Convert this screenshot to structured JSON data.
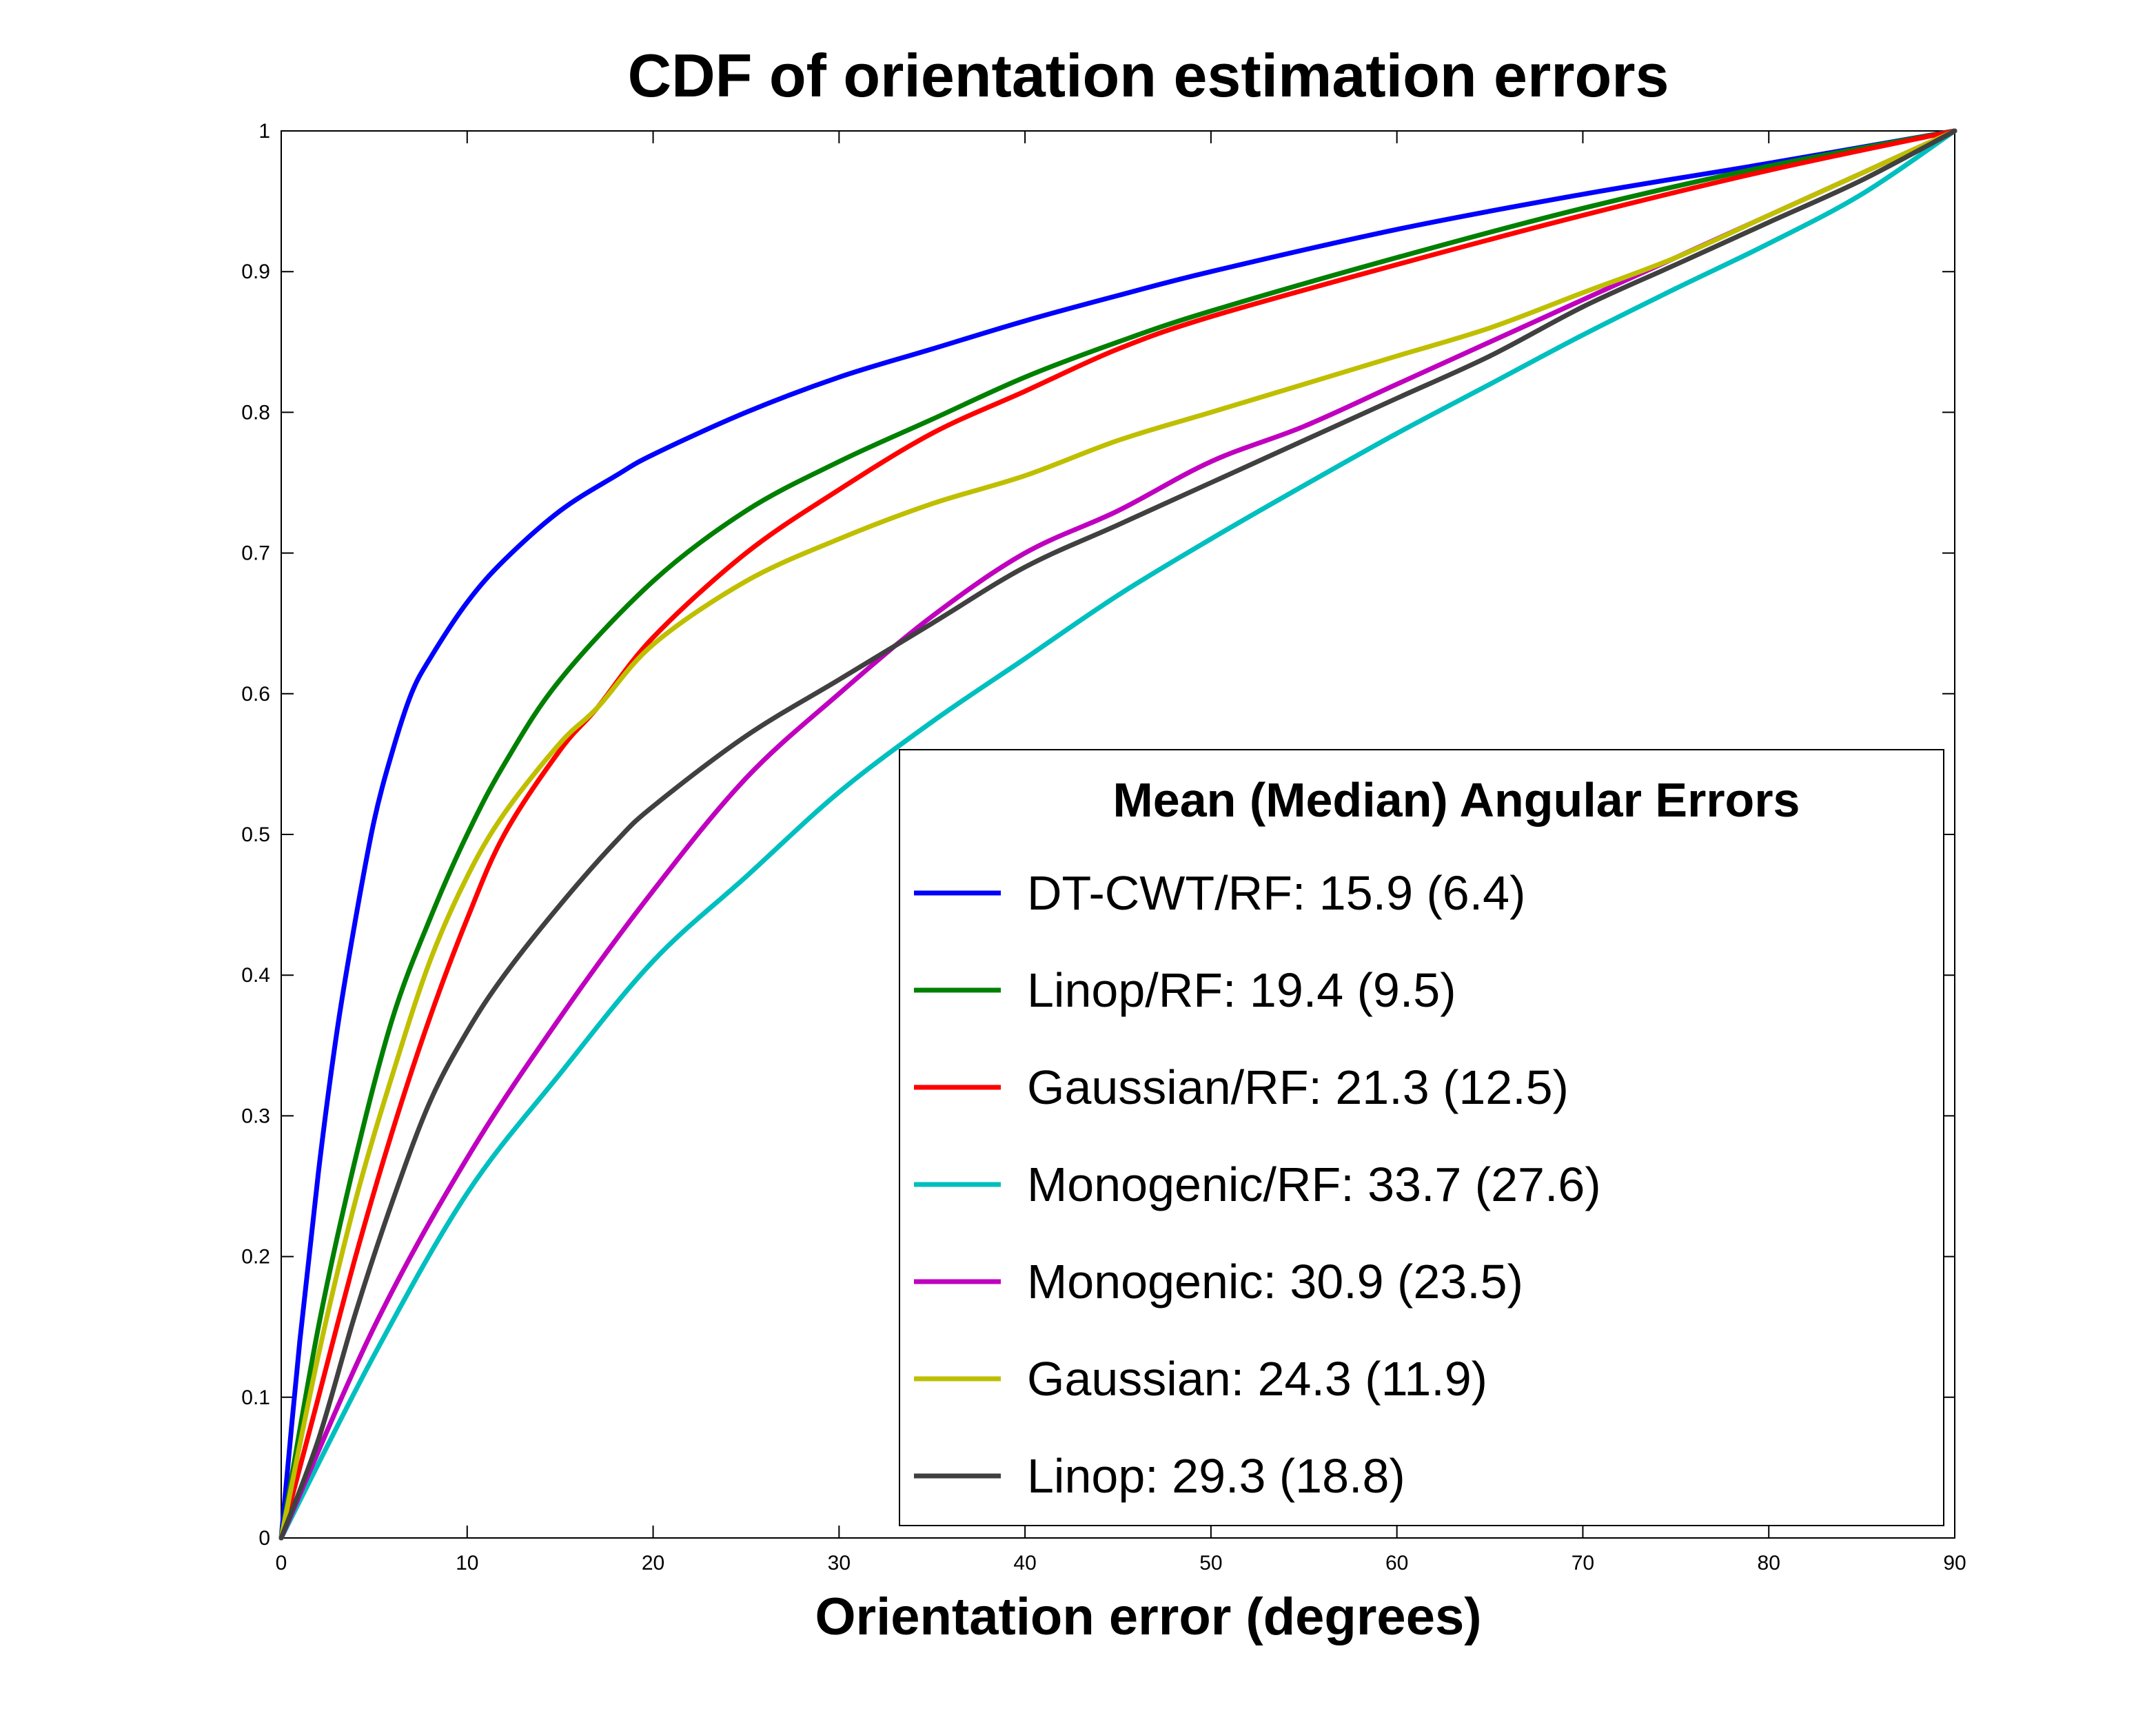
{
  "chart_data": {
    "type": "line",
    "title": "CDF of orientation estimation errors",
    "xlabel": "Orientation error (degrees)",
    "ylabel": "",
    "xlim": [
      0,
      90
    ],
    "ylim": [
      0,
      1
    ],
    "xticks": [
      "0",
      "10",
      "20",
      "30",
      "40",
      "50",
      "60",
      "70",
      "80",
      "90"
    ],
    "yticks": [
      "0",
      "0.1",
      "0.2",
      "0.3",
      "0.4",
      "0.5",
      "0.6",
      "0.7",
      "0.8",
      "0.9",
      "1"
    ],
    "grid": false,
    "legend": {
      "title": "Mean (Median) Angular Errors",
      "placement": "bottom-right"
    },
    "series": [
      {
        "name": "DT-CWT/RF: 15.9 (6.4)",
        "color": "#0000ff",
        "x": [
          0,
          1,
          2,
          3,
          4,
          5,
          6,
          7,
          8,
          10,
          12,
          15,
          18,
          20,
          25,
          30,
          35,
          40,
          45,
          50,
          60,
          70,
          80,
          90
        ],
        "y": [
          0,
          0.14,
          0.26,
          0.36,
          0.44,
          0.51,
          0.56,
          0.6,
          0.625,
          0.665,
          0.695,
          0.73,
          0.755,
          0.77,
          0.8,
          0.825,
          0.845,
          0.865,
          0.883,
          0.9,
          0.93,
          0.955,
          0.977,
          1.0
        ]
      },
      {
        "name": "Linop/RF: 19.4 (9.5)",
        "color": "#008000",
        "x": [
          0,
          2,
          4,
          6,
          8,
          10,
          12,
          15,
          20,
          25,
          30,
          35,
          40,
          45,
          50,
          60,
          70,
          80,
          90
        ],
        "y": [
          0,
          0.15,
          0.27,
          0.37,
          0.44,
          0.5,
          0.55,
          0.61,
          0.68,
          0.73,
          0.765,
          0.795,
          0.825,
          0.85,
          0.872,
          0.91,
          0.945,
          0.975,
          1.0
        ]
      },
      {
        "name": "Gaussian/RF: 21.3 (12.5)",
        "color": "#ff0000",
        "x": [
          0,
          2,
          4,
          6,
          8,
          10,
          12,
          15,
          17,
          20,
          25,
          30,
          35,
          40,
          45,
          50,
          60,
          70,
          80,
          90
        ],
        "y": [
          0,
          0.1,
          0.2,
          0.29,
          0.37,
          0.44,
          0.5,
          0.56,
          0.59,
          0.64,
          0.7,
          0.745,
          0.785,
          0.815,
          0.845,
          0.868,
          0.905,
          0.94,
          0.972,
          1.0
        ]
      },
      {
        "name": "Monogenic/RF: 33.7 (27.6)",
        "color": "#00bfbf",
        "x": [
          0,
          5,
          10,
          15,
          20,
          25,
          30,
          35,
          40,
          45,
          50,
          55,
          60,
          65,
          70,
          75,
          80,
          85,
          90
        ],
        "y": [
          0,
          0.13,
          0.245,
          0.33,
          0.41,
          0.47,
          0.53,
          0.58,
          0.625,
          0.67,
          0.71,
          0.748,
          0.785,
          0.82,
          0.855,
          0.888,
          0.92,
          0.955,
          1.0
        ]
      },
      {
        "name": "Monogenic: 30.9 (23.5)",
        "color": "#bf00bf",
        "x": [
          0,
          5,
          10,
          15,
          20,
          25,
          30,
          35,
          40,
          45,
          50,
          55,
          60,
          65,
          70,
          75,
          80,
          85,
          90
        ],
        "y": [
          0,
          0.15,
          0.27,
          0.37,
          0.46,
          0.54,
          0.6,
          0.655,
          0.7,
          0.73,
          0.765,
          0.79,
          0.82,
          0.85,
          0.88,
          0.91,
          0.94,
          0.97,
          1.0
        ]
      },
      {
        "name": "Gaussian: 24.3 (11.9)",
        "color": "#bfbf00",
        "x": [
          0,
          2,
          4,
          6,
          8,
          10,
          12,
          15,
          17,
          20,
          25,
          30,
          35,
          40,
          45,
          50,
          55,
          60,
          65,
          70,
          75,
          80,
          85,
          90
        ],
        "y": [
          0,
          0.13,
          0.24,
          0.33,
          0.41,
          0.47,
          0.515,
          0.565,
          0.59,
          0.635,
          0.68,
          0.71,
          0.735,
          0.755,
          0.78,
          0.8,
          0.82,
          0.84,
          0.86,
          0.885,
          0.91,
          0.94,
          0.97,
          1.0
        ]
      },
      {
        "name": "Linop: 29.3 (18.8)",
        "color": "#404040",
        "x": [
          0,
          2,
          4,
          6,
          8,
          10,
          12,
          15,
          18,
          20,
          25,
          30,
          35,
          40,
          45,
          50,
          55,
          60,
          65,
          70,
          75,
          80,
          85,
          90
        ],
        "y": [
          0,
          0.07,
          0.16,
          0.24,
          0.31,
          0.36,
          0.4,
          0.45,
          0.495,
          0.52,
          0.57,
          0.61,
          0.65,
          0.69,
          0.72,
          0.75,
          0.78,
          0.81,
          0.84,
          0.875,
          0.905,
          0.935,
          0.965,
          1.0
        ]
      }
    ]
  }
}
